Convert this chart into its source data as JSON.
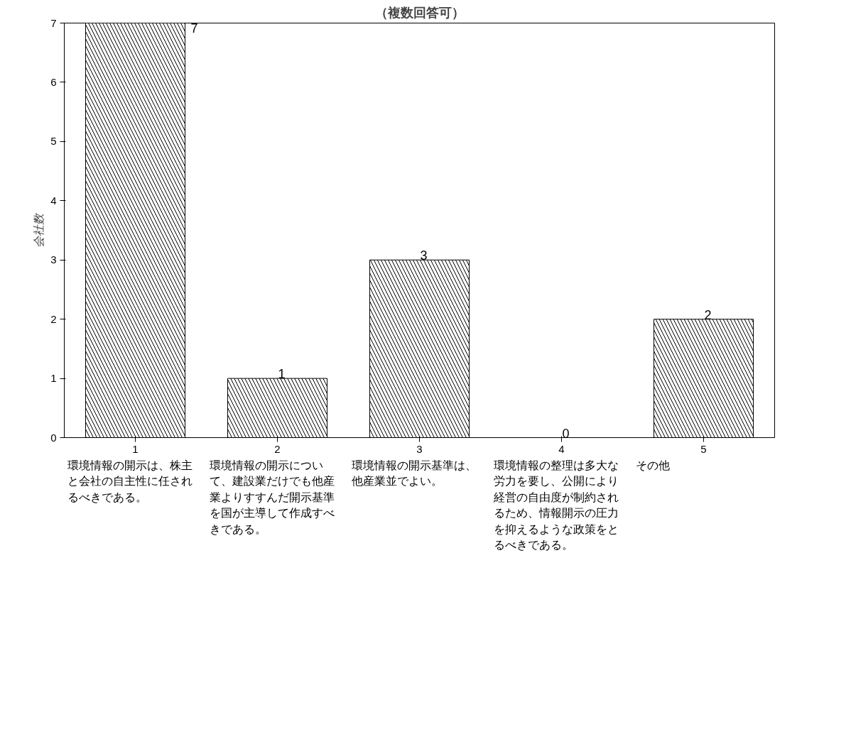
{
  "chart_data": {
    "type": "bar",
    "title": "（複数回答可）",
    "ylabel": "会社数",
    "categories": [
      "1",
      "2",
      "3",
      "4",
      "5"
    ],
    "values": [
      7,
      1,
      3,
      0,
      2
    ],
    "color": "#ffffff",
    "ylim": [
      0,
      7
    ],
    "yticks": [
      0,
      1,
      2,
      3,
      4,
      5,
      6,
      7
    ],
    "grid": false,
    "data_labels": true,
    "annotations": [
      "環境情報の開示は、株主と会社の自主性に任されるべきである。",
      "環境情報の開示について、建設業だけでも他産業よりすすんだ開示基準を国が主導して作成すべきである。",
      "環境情報の開示基準は、他産業並でよい。",
      "環境情報の整理は多大な労力を要し、公開により経営の自由度が制約されるため、情報開示の圧力を抑えるような政策をとるべきである。",
      "その他"
    ]
  }
}
